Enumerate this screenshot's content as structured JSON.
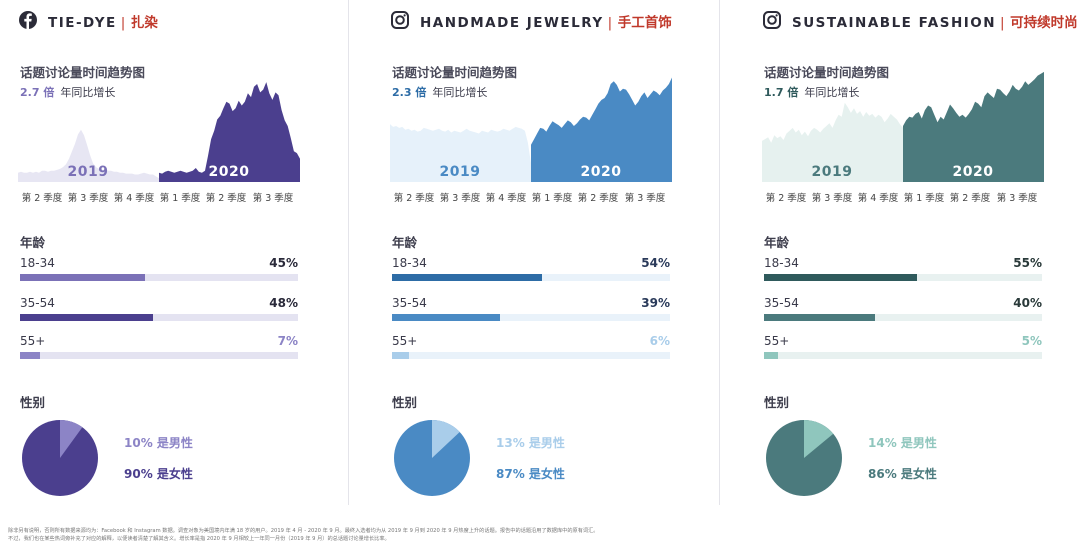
{
  "panels": [
    {
      "brand_icon": "facebook-icon",
      "title_en": "TIE-DYE",
      "separator": "|",
      "title_cn": "扎染",
      "trend_title": "话题讨论量时间趋势图",
      "growth_value": "2.7 倍",
      "growth_label": "年同比增长",
      "colors": {
        "main": "#4b3f8e",
        "light": "#e7e6f3",
        "mid": "#7b71b7",
        "pale": "#8c84c6",
        "track": "#e4e3f1",
        "year2019": "#7b71b7",
        "text": "#2a2a3a"
      },
      "chart_data": {
        "type": "area",
        "title": "话题讨论量时间趋势图",
        "series_2019": [
          10,
          11,
          10,
          10,
          11,
          10,
          11,
          10,
          12,
          12,
          11,
          12,
          12,
          13,
          14,
          16,
          19,
          25,
          33,
          41,
          51,
          56,
          50,
          40,
          29,
          20,
          16,
          14,
          13,
          13,
          12,
          12,
          11,
          11,
          10,
          10,
          9,
          9,
          9,
          8,
          8,
          9,
          10,
          9,
          8,
          8,
          6,
          4
        ],
        "series_2020": [
          10,
          9,
          11,
          12,
          11,
          10,
          11,
          12,
          11,
          10,
          11,
          12,
          15,
          11,
          10,
          12,
          28,
          46,
          55,
          67,
          71,
          79,
          86,
          84,
          76,
          79,
          87,
          82,
          86,
          95,
          91,
          102,
          105,
          96,
          99,
          107,
          95,
          88,
          96,
          93,
          77,
          66,
          60,
          47,
          33,
          31,
          25
        ],
        "year_labels": [
          "2019",
          "2020"
        ],
        "quarters": [
          "第 2 季度",
          "第 3 季度",
          "第 4 季度",
          "第 1 季度",
          "第 2 季度",
          "第 3 季度"
        ]
      },
      "age_title": "年龄",
      "age": [
        {
          "label": "18-34",
          "pct": "45%",
          "value": 45
        },
        {
          "label": "35-54",
          "pct": "48%",
          "value": 48
        },
        {
          "label": "55+",
          "pct": "7%",
          "value": 7
        }
      ],
      "gender_title": "性别",
      "gender": {
        "male_text": "10% 是男性",
        "female_text": "90% 是女性",
        "male": 10,
        "female": 90
      }
    },
    {
      "brand_icon": "instagram-icon",
      "title_en": "HANDMADE JEWELRY",
      "separator": "|",
      "title_cn": "手工首饰",
      "trend_title": "话题讨论量时间趋势图",
      "growth_value": "2.3 倍",
      "growth_label": "年同比增长",
      "colors": {
        "main": "#4a8ac4",
        "light": "#e6f1fa",
        "mid": "#2d6ca6",
        "pale": "#a9cdea",
        "track": "#e9f2fa",
        "year2019": "#4a8ac4",
        "text": "#2a3a5a"
      },
      "chart_data": {
        "type": "area",
        "title": "话题讨论量时间趋势图",
        "series_2019": [
          62,
          59,
          60,
          58,
          59,
          56,
          57,
          55,
          56,
          54,
          55,
          58,
          57,
          56,
          55,
          56,
          57,
          55,
          54,
          56,
          53,
          55,
          54,
          53,
          55,
          57,
          55,
          54,
          53,
          52,
          55,
          54,
          53,
          56,
          55,
          54,
          55,
          57,
          56,
          55,
          57,
          59,
          58,
          57,
          55,
          42,
          20
        ],
        "series_2020": [
          40,
          46,
          52,
          58,
          57,
          54,
          60,
          65,
          63,
          61,
          58,
          62,
          66,
          64,
          60,
          63,
          67,
          70,
          69,
          66,
          72,
          78,
          84,
          88,
          90,
          95,
          105,
          108,
          104,
          97,
          100,
          99,
          94,
          88,
          82,
          86,
          92,
          96,
          90,
          94,
          98,
          96,
          93,
          98,
          101,
          105,
          112
        ],
        "year_labels": [
          "2019",
          "2020"
        ],
        "quarters": [
          "第 2 季度",
          "第 3 季度",
          "第 4 季度",
          "第 1 季度",
          "第 2 季度",
          "第 3 季度"
        ]
      },
      "age_title": "年龄",
      "age": [
        {
          "label": "18-34",
          "pct": "54%",
          "value": 54
        },
        {
          "label": "35-54",
          "pct": "39%",
          "value": 39
        },
        {
          "label": "55+",
          "pct": "6%",
          "value": 6
        }
      ],
      "gender_title": "性别",
      "gender": {
        "male_text": "13% 是男性",
        "female_text": "87% 是女性",
        "male": 13,
        "female": 87
      }
    },
    {
      "brand_icon": "instagram-icon",
      "title_en": "SUSTAINABLE FASHION",
      "separator": "|",
      "title_cn": "可持续时尚",
      "trend_title": "话题讨论量时间趋势图",
      "growth_value": "1.7 倍",
      "growth_label": "年同比增长",
      "colors": {
        "main": "#4b7a7d",
        "light": "#e6f1ef",
        "mid": "#2f5a5c",
        "pale": "#8fc6bd",
        "track": "#e8f1f0",
        "year2019": "#4b7a7d",
        "text": "#2a3a3a"
      },
      "chart_data": {
        "type": "area",
        "title": "话题讨论量时间趋势图",
        "series_2019": [
          44,
          46,
          48,
          42,
          50,
          47,
          49,
          45,
          52,
          55,
          58,
          53,
          56,
          50,
          54,
          49,
          55,
          58,
          56,
          53,
          57,
          60,
          63,
          58,
          66,
          72,
          70,
          85,
          80,
          74,
          79,
          73,
          76,
          70,
          75,
          71,
          73,
          69,
          72,
          70,
          64,
          68,
          73,
          70,
          67,
          62,
          58
        ],
        "series_2020": [
          60,
          66,
          70,
          69,
          73,
          75,
          68,
          77,
          82,
          80,
          72,
          64,
          70,
          67,
          75,
          83,
          79,
          74,
          70,
          72,
          69,
          73,
          78,
          86,
          84,
          80,
          92,
          96,
          93,
          90,
          100,
          99,
          95,
          92,
          97,
          104,
          100,
          98,
          102,
          108,
          104,
          107,
          110,
          114,
          116,
          118
        ],
        "year_labels": [
          "2019",
          "2020"
        ],
        "quarters": [
          "第 2 季度",
          "第 3 季度",
          "第 4 季度",
          "第 1 季度",
          "第 2 季度",
          "第 3 季度"
        ]
      },
      "age_title": "年龄",
      "age": [
        {
          "label": "18-34",
          "pct": "55%",
          "value": 55
        },
        {
          "label": "35-54",
          "pct": "40%",
          "value": 40
        },
        {
          "label": "55+",
          "pct": "5%",
          "value": 5
        }
      ],
      "gender_title": "性别",
      "gender": {
        "male_text": "14% 是男性",
        "female_text": "86% 是女性",
        "male": 14,
        "female": 86
      }
    }
  ],
  "footnote": {
    "line1": "除非另有说明，否则所有数据来源均为：Facebook 和 Instagram 数据。调查对象为美国境内年满 18 岁的用户。2019 年 4 月 - 2020 年 9 月。最终入选者均为从 2019 年 9 月到 2020 年 9 月热度上升的话题。报告中的话题沿用了数据库中的原有词汇。",
    "line2": "不过，我们也在某些热词旁补充了对应的解释，以便读者清楚了解其含义。增长率是指 2020 年 9 月相较上一年同一月份（2019 年 9 月）的总话题讨论量增长比率。"
  }
}
